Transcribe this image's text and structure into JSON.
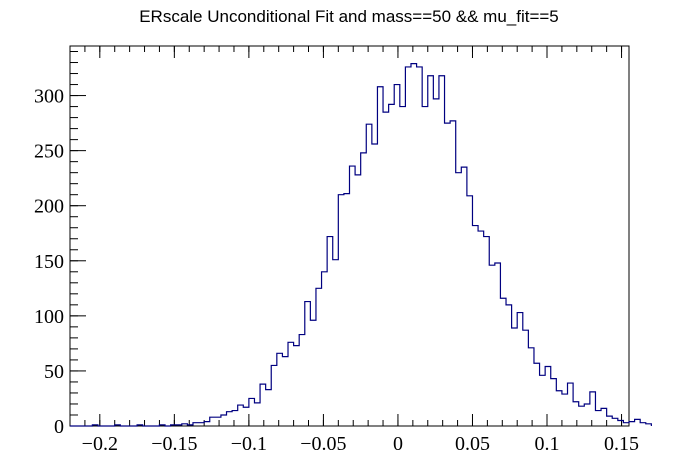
{
  "chart_data": {
    "type": "bar",
    "title": "ERscale Unconditional Fit and mass==50 && mu_fit==5",
    "xlabel": "",
    "ylabel": "",
    "xlim": [
      -0.22,
      0.155
    ],
    "ylim": [
      0,
      345
    ],
    "x_ticks": [
      -0.2,
      -0.15,
      -0.1,
      -0.05,
      0,
      0.05,
      0.1,
      0.15
    ],
    "x_tick_labels": [
      "−0.2",
      "−0.15",
      "−0.1",
      "−0.05",
      "0",
      "0.05",
      "0.1",
      "0.15"
    ],
    "y_ticks": [
      0,
      50,
      100,
      150,
      200,
      250,
      300
    ],
    "y_tick_labels": [
      "0",
      "50",
      "100",
      "150",
      "200",
      "250",
      "300"
    ],
    "bin_start": -0.22,
    "bin_width": 0.00375,
    "values": [
      0,
      0,
      0,
      0,
      1,
      0,
      0,
      0,
      1,
      0,
      0,
      0,
      1,
      0,
      0,
      0,
      1,
      0,
      1,
      1,
      2,
      1,
      3,
      3,
      4,
      8,
      8,
      10,
      13,
      14,
      19,
      17,
      25,
      21,
      38,
      33,
      55,
      66,
      63,
      76,
      73,
      83,
      113,
      96,
      125,
      140,
      172,
      151,
      210,
      211,
      236,
      228,
      248,
      274,
      256,
      308,
      285,
      292,
      310,
      290,
      326,
      329,
      326,
      290,
      318,
      297,
      318,
      275,
      277,
      230,
      235,
      209,
      182,
      177,
      172,
      146,
      148,
      116,
      110,
      89,
      103,
      87,
      71,
      57,
      46,
      54,
      43,
      32,
      29,
      39,
      22,
      18,
      20,
      31,
      14,
      16,
      9,
      7,
      5,
      3,
      4,
      6,
      3,
      2
    ]
  }
}
